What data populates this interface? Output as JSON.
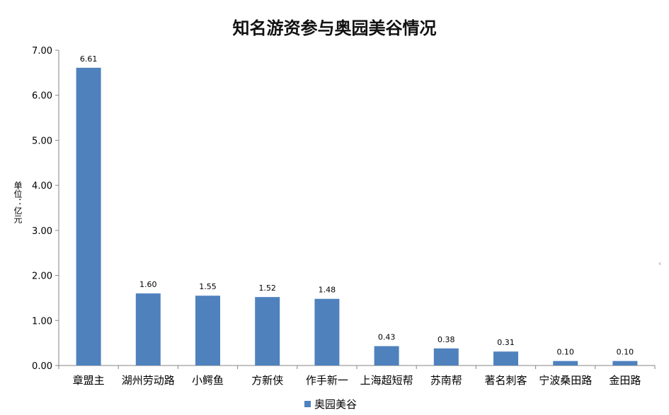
{
  "colors": {
    "bar": "#4F81BD",
    "axis": "#868686",
    "background": "#FFFFFF"
  },
  "chart_data": {
    "type": "bar",
    "title": "知名游资参与奥园美谷情况",
    "xlabel": "",
    "ylabel": "单位：亿元",
    "categories": [
      "章盟主",
      "湖州劳动路",
      "小鳄鱼",
      "方新侠",
      "作手新一",
      "上海超短帮",
      "苏南帮",
      "著名刺客",
      "宁波桑田路",
      "金田路"
    ],
    "series": [
      {
        "name": "奥园美谷",
        "values": [
          6.61,
          1.6,
          1.55,
          1.52,
          1.48,
          0.43,
          0.38,
          0.31,
          0.1,
          0.1
        ]
      }
    ],
    "data_labels": [
      "6.61",
      "1.60",
      "1.55",
      "1.52",
      "1.48",
      "0.43",
      "0.38",
      "0.31",
      "0.10",
      "0.10"
    ],
    "y_ticks": [
      "0.00",
      "1.00",
      "2.00",
      "3.00",
      "4.00",
      "5.00",
      "6.00",
      "7.00"
    ],
    "ylim": [
      0,
      7
    ],
    "grid": false,
    "legend": "bottom"
  }
}
